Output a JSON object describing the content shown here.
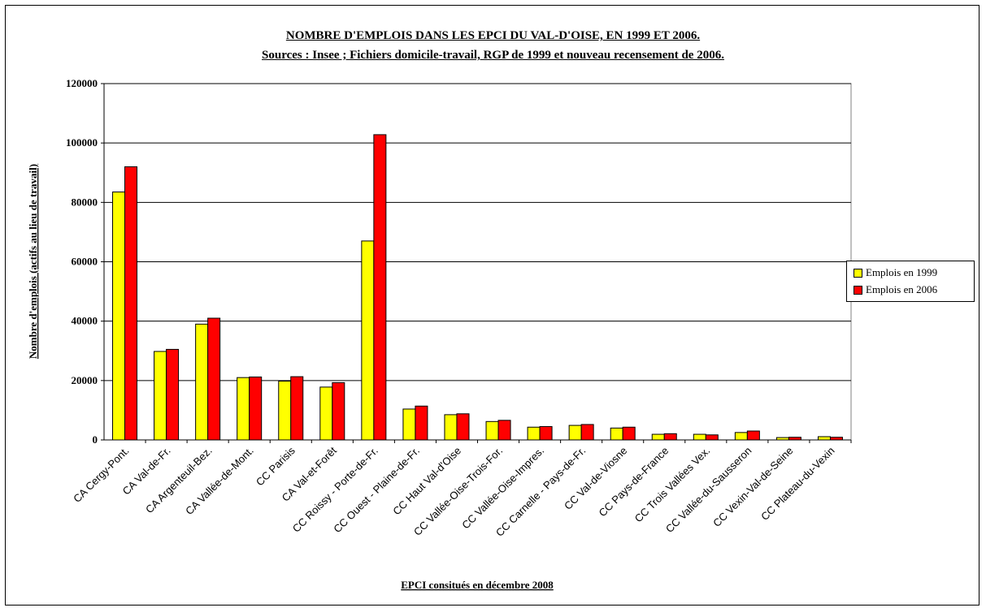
{
  "chart_data": {
    "type": "bar",
    "title": "NOMBRE D'EMPLOIS DANS LES EPCI DU VAL-D'OISE, EN 1999 ET 2006.",
    "subtitle": "Sources : Insee ; Fichiers domicile-travail, RGP de 1999 et nouveau recensement de 2006.",
    "xlabel": "EPCI consitués en décembre 2008",
    "ylabel": "Nombre d'emplois (actifs au lieu de travail)",
    "ylim": [
      0,
      120000
    ],
    "yticks": [
      0,
      20000,
      40000,
      60000,
      80000,
      100000,
      120000
    ],
    "grid": true,
    "legend_position": "right",
    "categories": [
      "CA Cergy-Pont.",
      "CA Val-de-Fr.",
      "CA Argenteuil-Bez.",
      "CA Vallée-de-Mont.",
      "CC Parisis",
      "CA Val-et-Forêt",
      "CC Roissy - Porte-de-Fr.",
      "CC Ouest - Plaine-de-Fr.",
      "CC Haut Val-d'Oise",
      "CC Vallée-Oise-Trois-For.",
      "CC Vallée-Oise-Impres.",
      "CC Carnelle - Pays-de-Fr.",
      "CC Val-de-Viosne",
      "CC Pays-de-France",
      "CC Trois Vallées Vex.",
      "CC Vallée-du-Sausseron",
      "CC Vexin-Val-de-Seine",
      "CC Plateau-du-Vexin"
    ],
    "series": [
      {
        "name": "Emplois en 1999",
        "color": "#ffff00",
        "values": [
          83500,
          29800,
          39000,
          21000,
          19800,
          17800,
          67000,
          10400,
          8500,
          6200,
          4300,
          4900,
          4000,
          1900,
          1900,
          2500,
          800,
          1100
        ]
      },
      {
        "name": "Emplois en 2006",
        "color": "#ff0000",
        "values": [
          92000,
          30500,
          41000,
          21200,
          21300,
          19300,
          102800,
          11400,
          8800,
          6600,
          4500,
          5200,
          4300,
          2100,
          1700,
          3000,
          900,
          900
        ]
      }
    ]
  }
}
